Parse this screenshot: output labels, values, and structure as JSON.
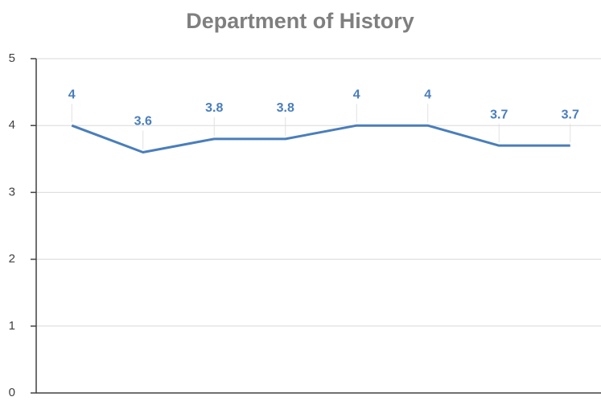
{
  "chart_data": {
    "type": "line",
    "title": "Department of History",
    "categories": [
      null,
      null,
      null,
      null,
      null,
      null,
      null,
      null
    ],
    "values": [
      4,
      3.6,
      3.8,
      3.8,
      4,
      4,
      3.7,
      3.7
    ],
    "color": "#4a7ebb",
    "ylim": [
      0,
      5
    ],
    "yticks": [
      0,
      1,
      2,
      3,
      4,
      5
    ],
    "grid": true
  }
}
